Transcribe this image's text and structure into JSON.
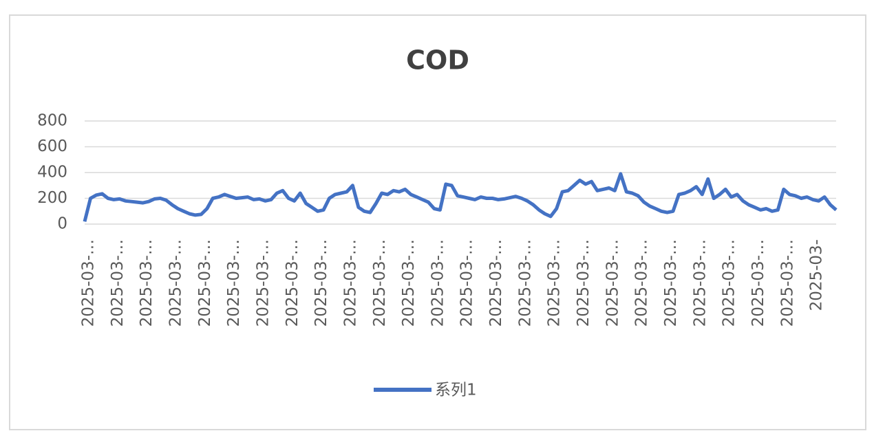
{
  "chart_data": {
    "type": "line",
    "title": "COD",
    "categories": [
      "2025-03-…",
      null,
      null,
      null,
      null,
      "2025-03-…",
      null,
      null,
      null,
      null,
      "2025-03-…",
      null,
      null,
      null,
      null,
      "2025-03-…",
      null,
      null,
      null,
      null,
      "2025-03-…",
      null,
      null,
      null,
      null,
      "2025-03-…",
      null,
      null,
      null,
      null,
      "2025-03-…",
      null,
      null,
      null,
      null,
      "2025-03-…",
      null,
      null,
      null,
      null,
      "2025-03-…",
      null,
      null,
      null,
      null,
      "2025-03-…",
      null,
      null,
      null,
      null,
      "2025-03-…",
      null,
      null,
      null,
      null,
      "2025-03-…",
      null,
      null,
      null,
      null,
      "2025-03-…",
      null,
      null,
      null,
      null,
      "2025-03-…",
      null,
      null,
      null,
      null,
      "2025-03-…",
      null,
      null,
      null,
      null,
      "2025-03-…",
      null,
      null,
      null,
      null,
      "2025-03-…",
      null,
      null,
      null,
      null,
      "2025-03-…",
      null,
      null,
      null,
      null,
      "2025-03-…",
      null,
      null,
      null,
      null,
      "2025-03-…",
      null,
      null,
      null,
      null,
      "2025-03-…",
      null,
      null,
      null,
      null,
      "2025-03-…",
      null,
      null,
      null,
      null,
      "2025-03-…",
      null,
      null,
      null,
      null,
      "2025-03-…",
      null,
      null,
      null,
      null,
      "2025-03-…",
      null,
      null,
      null,
      null,
      "2025-03-",
      null,
      null,
      null,
      null
    ],
    "series": [
      {
        "name": "系列1",
        "color": "#4472c4",
        "values": [
          20,
          200,
          225,
          235,
          200,
          190,
          195,
          180,
          175,
          170,
          165,
          175,
          195,
          200,
          185,
          150,
          120,
          100,
          80,
          70,
          75,
          120,
          200,
          210,
          230,
          215,
          200,
          205,
          210,
          190,
          195,
          180,
          190,
          240,
          260,
          200,
          180,
          240,
          160,
          130,
          100,
          110,
          200,
          230,
          240,
          250,
          300,
          130,
          100,
          90,
          160,
          240,
          230,
          260,
          250,
          270,
          230,
          210,
          190,
          170,
          120,
          110,
          310,
          300,
          220,
          210,
          200,
          190,
          210,
          200,
          200,
          190,
          195,
          205,
          215,
          200,
          180,
          150,
          110,
          80,
          60,
          120,
          250,
          260,
          300,
          340,
          310,
          330,
          260,
          270,
          280,
          260,
          390,
          250,
          240,
          220,
          170,
          140,
          120,
          100,
          90,
          100,
          230,
          240,
          260,
          290,
          230,
          350,
          200,
          230,
          270,
          210,
          230,
          180,
          150,
          130,
          110,
          120,
          100,
          110,
          270,
          230,
          220,
          200,
          210,
          190,
          180,
          210,
          150,
          110
        ]
      }
    ],
    "ylim": [
      0,
      800
    ],
    "yticks": [
      0,
      200,
      400,
      600,
      800
    ],
    "grid": true
  }
}
